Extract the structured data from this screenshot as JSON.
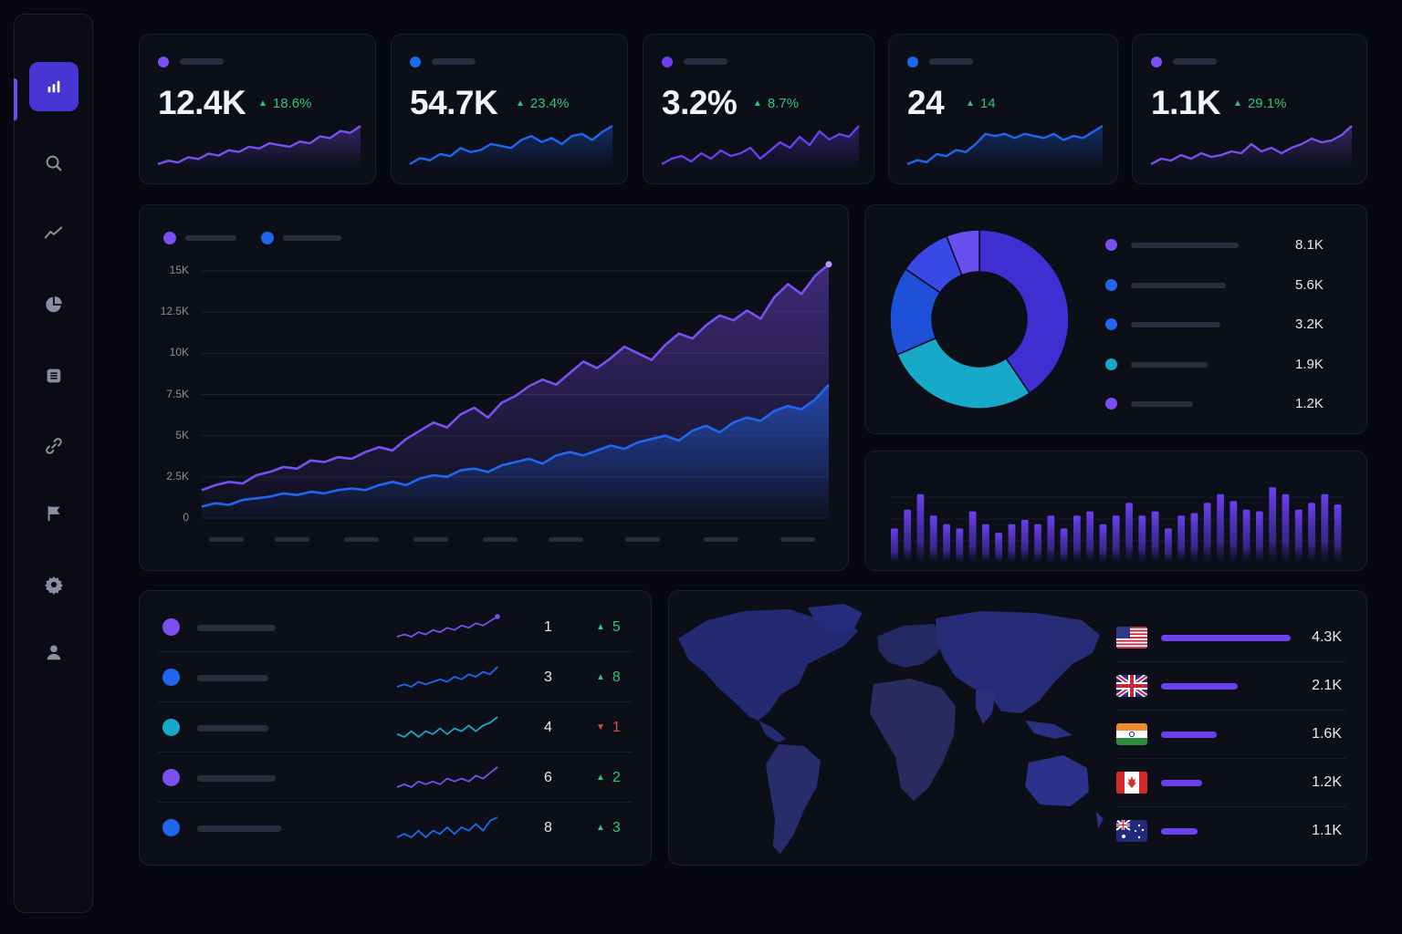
{
  "colors": {
    "purple": "#7b4ff0",
    "blue": "#1f67f0",
    "teal": "#17a9c9",
    "up": "#33c47a",
    "down": "#e04848",
    "accent": "#4a35d4"
  },
  "sidebar": {
    "items": [
      {
        "icon": "bar-chart-icon",
        "active": true
      },
      {
        "icon": "search-icon"
      },
      {
        "icon": "trend-line-icon"
      },
      {
        "icon": "pie-chart-icon"
      },
      {
        "icon": "list-icon"
      },
      {
        "icon": "link-icon"
      },
      {
        "icon": "flag-icon"
      },
      {
        "icon": "gear-icon"
      },
      {
        "icon": "user-icon"
      }
    ]
  },
  "kpis": [
    {
      "value": "12.4K",
      "delta": "18.6%",
      "color": "#7b4ff0",
      "trend": [
        3,
        5,
        4,
        7,
        6,
        9,
        8,
        11,
        10,
        13,
        12,
        15,
        14,
        13,
        16,
        15,
        19,
        18,
        22,
        21,
        25
      ]
    },
    {
      "value": "54.7K",
      "delta": "23.4%",
      "color": "#1f67f0",
      "trend": [
        3,
        6,
        5,
        8,
        7,
        11,
        9,
        10,
        13,
        12,
        11,
        15,
        17,
        14,
        16,
        13,
        17,
        18,
        15,
        19,
        22
      ]
    },
    {
      "value": "3.2%",
      "delta": "8.7%",
      "color": "#6a40ef",
      "trend": [
        4,
        6,
        7,
        5,
        8,
        6,
        9,
        7,
        8,
        10,
        6,
        9,
        12,
        10,
        14,
        11,
        16,
        13,
        15,
        14,
        18
      ]
    },
    {
      "value": "24",
      "delta": "14",
      "color": "#1f67f0",
      "trend": [
        2,
        4,
        3,
        7,
        6,
        9,
        8,
        12,
        17,
        16,
        17,
        15,
        17,
        16,
        15,
        17,
        14,
        16,
        15,
        18,
        21
      ]
    },
    {
      "value": "1.1K",
      "delta": "29.1%",
      "color": "#7b4ff0",
      "trend": [
        3,
        6,
        5,
        8,
        6,
        9,
        7,
        8,
        10,
        9,
        14,
        10,
        12,
        9,
        12,
        14,
        17,
        15,
        16,
        19,
        24
      ]
    }
  ],
  "main_chart": {
    "ytick_labels": [
      "0",
      "2.5K",
      "5K",
      "7.5K",
      "10K",
      "12.5K",
      "15K"
    ]
  },
  "chart_data": [
    {
      "type": "area",
      "title": "",
      "ylim": [
        0,
        15000
      ],
      "yticks": [
        "0",
        "2.5K",
        "5K",
        "7.5K",
        "10K",
        "12.5K",
        "15K"
      ],
      "grid": true,
      "legend": "top-left",
      "series": [
        {
          "color": "#7b4ff0",
          "values": [
            1700,
            2000,
            2200,
            2100,
            2600,
            2800,
            3100,
            3000,
            3500,
            3400,
            3700,
            3600,
            4000,
            4300,
            4100,
            4800,
            5300,
            5800,
            5500,
            6300,
            6700,
            6100,
            7000,
            7400,
            8000,
            8400,
            8100,
            8800,
            9500,
            9100,
            9700,
            10400,
            10000,
            9600,
            10500,
            11200,
            10900,
            11700,
            12300,
            12000,
            12600,
            12100,
            13400,
            14200,
            13600,
            14700,
            15400
          ]
        },
        {
          "color": "#1f67f0",
          "values": [
            700,
            900,
            800,
            1100,
            1200,
            1300,
            1500,
            1400,
            1600,
            1500,
            1700,
            1800,
            1700,
            2000,
            2200,
            2000,
            2400,
            2600,
            2500,
            2900,
            3000,
            2800,
            3200,
            3400,
            3600,
            3300,
            3800,
            4000,
            3800,
            4100,
            4400,
            4200,
            4600,
            4800,
            5000,
            4700,
            5300,
            5600,
            5200,
            5800,
            6100,
            5900,
            6500,
            6800,
            6600,
            7200,
            8100
          ]
        }
      ]
    },
    {
      "type": "pie",
      "title": "",
      "categories": [
        "",
        "",
        "",
        "",
        ""
      ],
      "values": [
        8100,
        5600,
        3200,
        1900,
        1200
      ],
      "labels": [
        "8.1K",
        "5.6K",
        "3.2K",
        "1.9K",
        "1.2K"
      ],
      "colors": [
        "#3f2fd0",
        "#17a9c9",
        "#1f50d8",
        "#3b48e8",
        "#6a4ff0"
      ]
    },
    {
      "type": "bar",
      "title": "",
      "values": [
        40,
        62,
        80,
        55,
        45,
        40,
        60,
        45,
        35,
        45,
        50,
        45,
        55,
        40,
        55,
        60,
        45,
        55,
        70,
        55,
        60,
        40,
        55,
        58,
        70,
        80,
        72,
        62,
        60,
        88,
        80,
        62,
        70,
        80,
        68
      ],
      "ylim": [
        0,
        100
      ]
    }
  ],
  "donut_legend": [
    {
      "color": "#7b4ff0",
      "value": "8.1K",
      "bar": 118
    },
    {
      "color": "#1f67f0",
      "value": "5.6K",
      "bar": 104
    },
    {
      "color": "#1f67f0",
      "value": "3.2K",
      "bar": 98
    },
    {
      "color": "#17a9c9",
      "value": "1.9K",
      "bar": 84
    },
    {
      "color": "#7b4ff0",
      "value": "1.2K",
      "bar": 68
    }
  ],
  "rows": [
    {
      "color": "#7b4ff0",
      "rank": "1",
      "delta": "5",
      "dir": "up",
      "trend": [
        3,
        4,
        3,
        5,
        4,
        6,
        5,
        7,
        6,
        8,
        7,
        9,
        8,
        10,
        12
      ]
    },
    {
      "color": "#1f67f0",
      "rank": "3",
      "delta": "8",
      "dir": "up",
      "trend": [
        3,
        4,
        3,
        5,
        4,
        5,
        6,
        5,
        7,
        6,
        8,
        7,
        9,
        8,
        11
      ]
    },
    {
      "color": "#17a9c9",
      "rank": "4",
      "delta": "1",
      "dir": "down",
      "trend": [
        4,
        3,
        5,
        3,
        5,
        4,
        6,
        4,
        6,
        5,
        7,
        5,
        7,
        8,
        10
      ]
    },
    {
      "color": "#7b4ff0",
      "rank": "6",
      "delta": "2",
      "dir": "up",
      "trend": [
        3,
        4,
        3,
        5,
        4,
        5,
        4,
        6,
        5,
        6,
        5,
        7,
        6,
        8,
        10
      ]
    },
    {
      "color": "#1f67f0",
      "rank": "8",
      "delta": "3",
      "dir": "up",
      "trend": [
        3,
        4,
        3,
        5,
        3,
        5,
        4,
        6,
        4,
        6,
        5,
        7,
        5,
        8,
        9
      ]
    }
  ],
  "countries": [
    {
      "flag": "us-flag-icon",
      "value": "4.3K",
      "share": 1.0
    },
    {
      "flag": "uk-flag-icon",
      "value": "2.1K",
      "share": 0.59
    },
    {
      "flag": "india-flag-icon",
      "value": "1.6K",
      "share": 0.43
    },
    {
      "flag": "canada-flag-icon",
      "value": "1.2K",
      "share": 0.32
    },
    {
      "flag": "australia-flag-icon",
      "value": "1.1K",
      "share": 0.28
    }
  ]
}
